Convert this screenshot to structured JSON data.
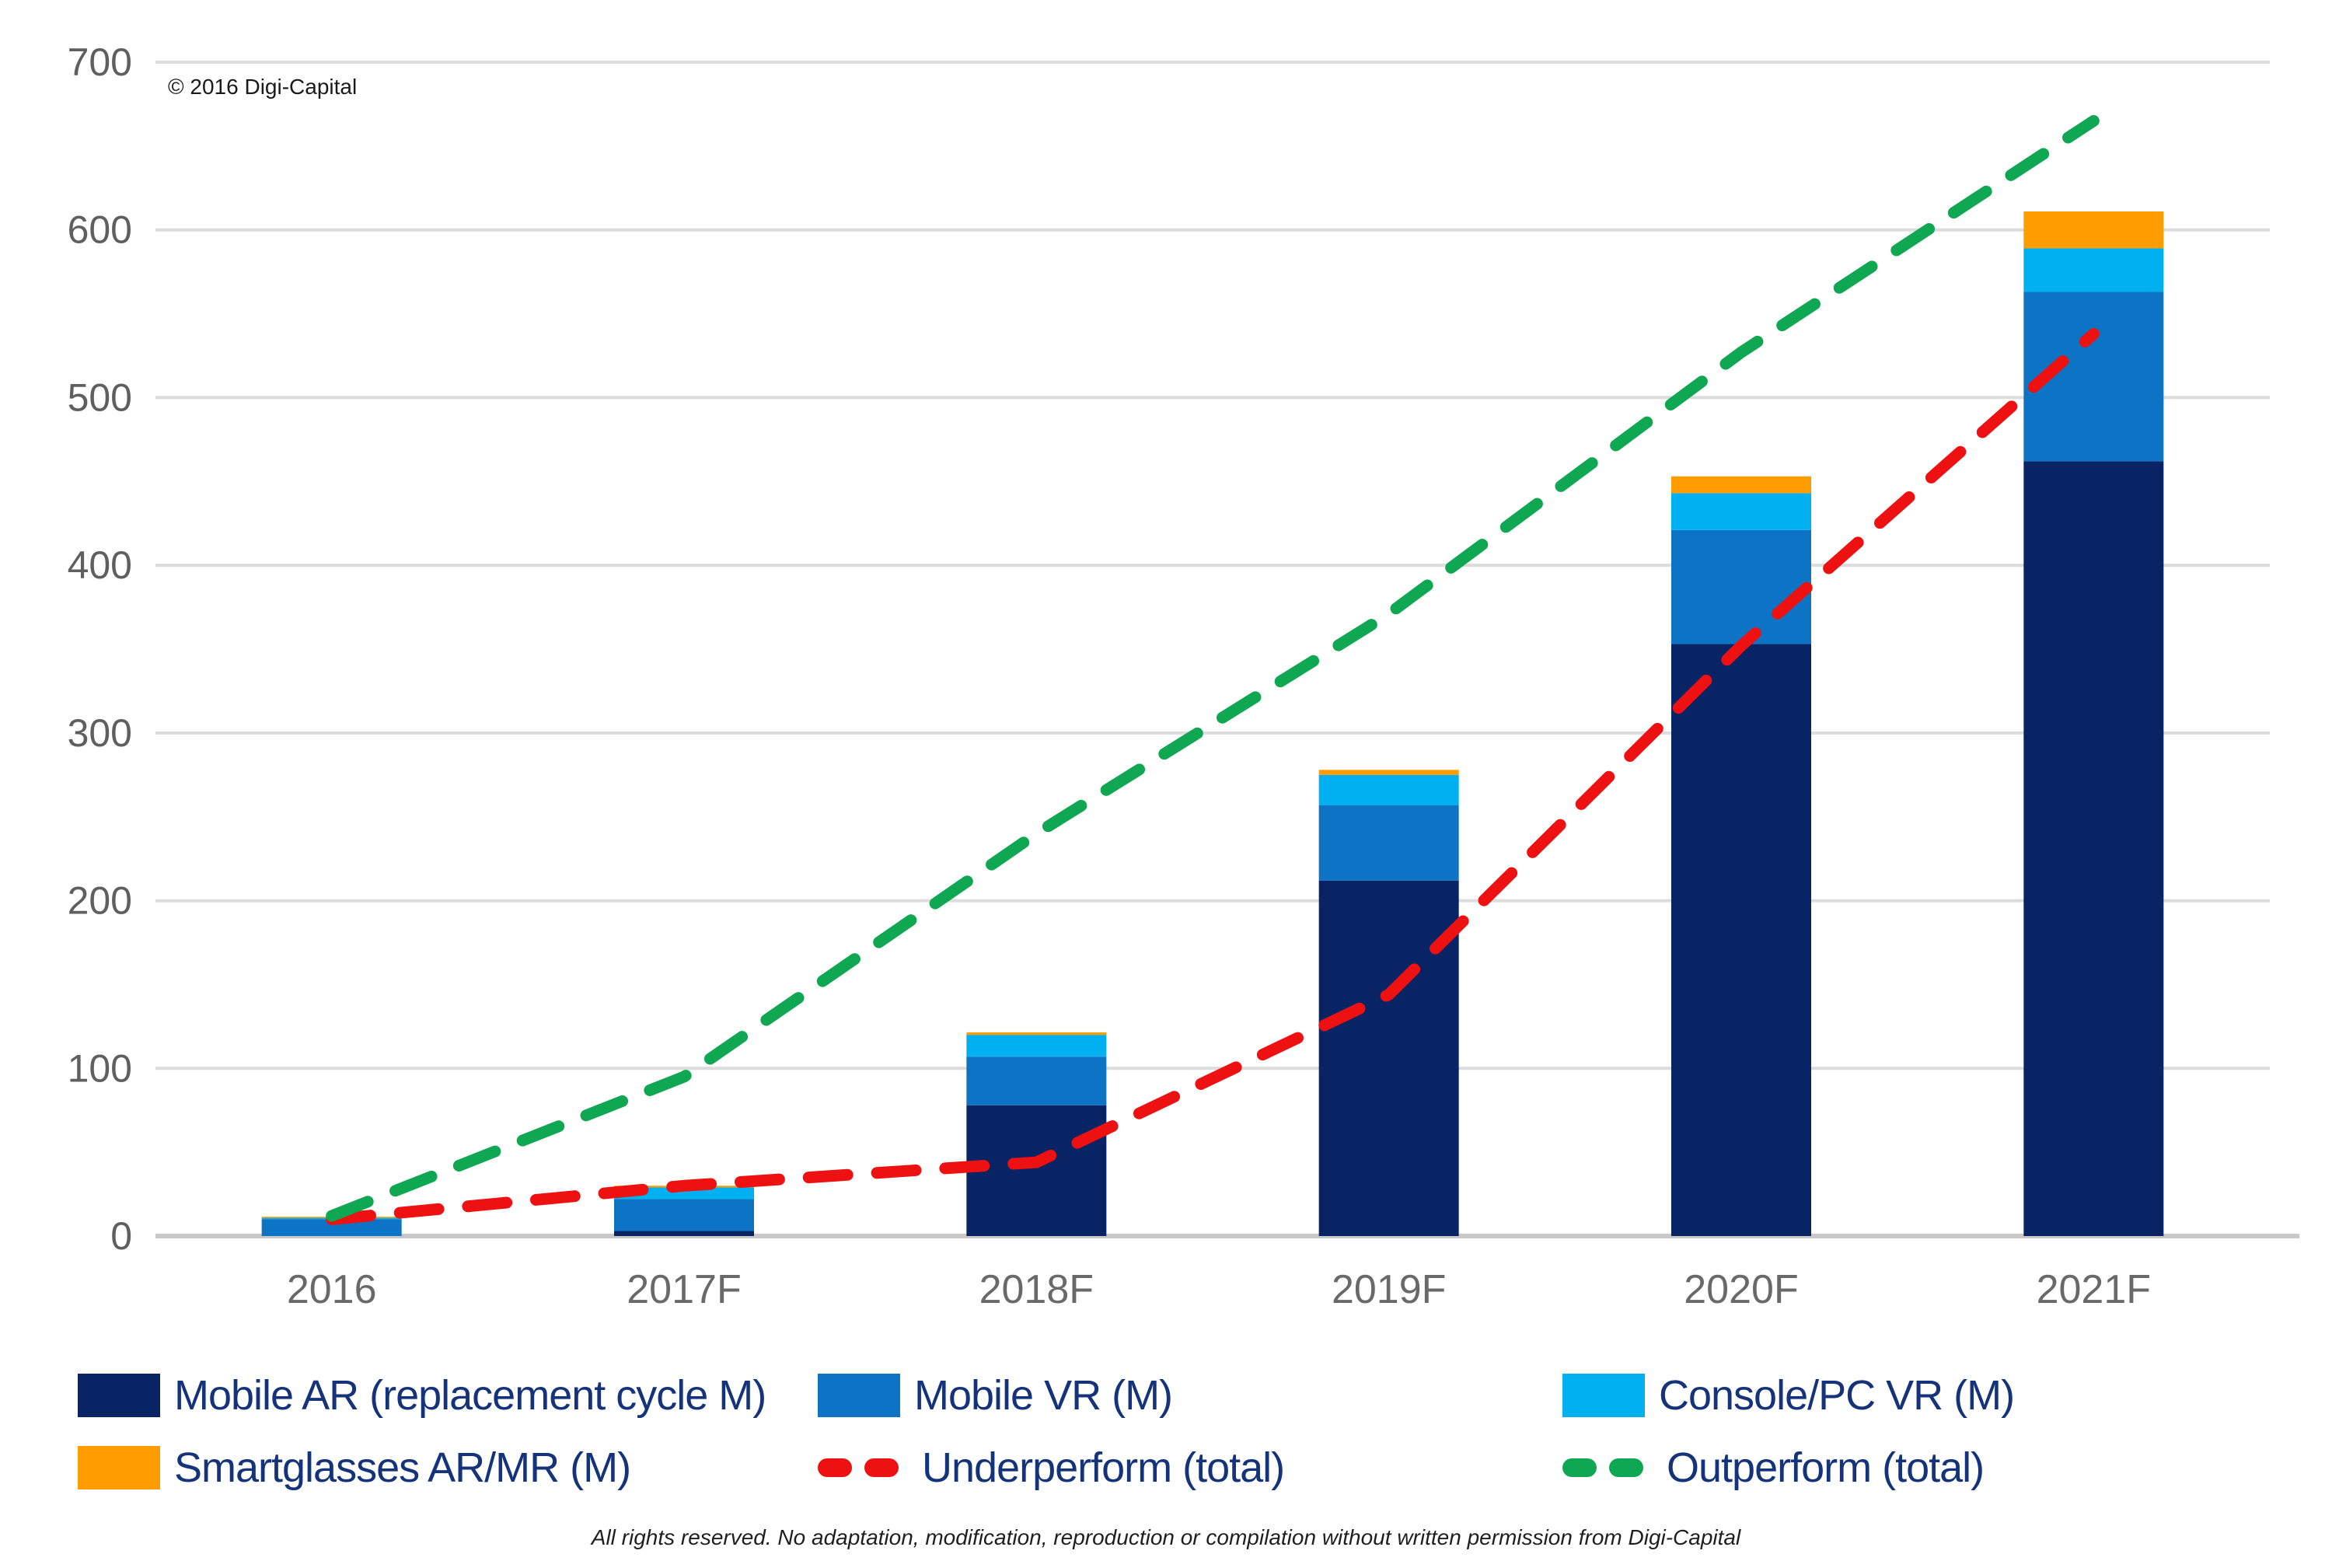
{
  "copyright": "© 2016 Digi-Capital",
  "footer": "All rights reserved. No adaptation, modification, reproduction or compilation without written permission from Digi-Capital",
  "colors": {
    "mobile_ar": "#082464",
    "mobile_vr": "#0d74c5",
    "console_pc_vr": "#00b0f0",
    "smartglasses": "#ff9c00",
    "underperform": "#ee1111",
    "outperform": "#0fa751",
    "gridline": "#dcdcdc",
    "axis_line": "#c9c9c9",
    "tick_label": "#5f5f5f",
    "x_label": "#696969",
    "legend_text": "#14337a"
  },
  "chart_data": {
    "type": "bar",
    "stacked": true,
    "categories": [
      "2016",
      "2017F",
      "2018F",
      "2019F",
      "2020F",
      "2021F"
    ],
    "series": [
      {
        "name": "Mobile AR (replacement cycle M)",
        "type": "bar",
        "color_key": "mobile_ar",
        "values": [
          0,
          3,
          78,
          212,
          353,
          462
        ]
      },
      {
        "name": "Mobile VR (M)",
        "type": "bar",
        "color_key": "mobile_vr",
        "values": [
          10,
          19,
          29,
          45,
          68,
          101
        ]
      },
      {
        "name": "Console/PC VR (M)",
        "type": "bar",
        "color_key": "console_pc_vr",
        "values": [
          1,
          7,
          13,
          18,
          22,
          26
        ]
      },
      {
        "name": "Smartglasses AR/MR (M)",
        "type": "bar",
        "color_key": "smartglasses",
        "values": [
          0.5,
          1,
          1.5,
          3,
          10,
          22
        ]
      },
      {
        "name": "Underperform (total)",
        "type": "dashed-line",
        "color_key": "underperform",
        "values": [
          10,
          30,
          44,
          144,
          352,
          538
        ]
      },
      {
        "name": "Outperform (total)",
        "type": "dashed-line",
        "color_key": "outperform",
        "values": [
          12,
          95,
          240,
          371,
          527,
          665
        ]
      }
    ],
    "bar_totals": [
      11.5,
      30,
      121.5,
      278,
      453,
      611
    ],
    "xlabel": "",
    "ylabel": "",
    "ylim": [
      0,
      700
    ],
    "yticks": [
      0,
      100,
      200,
      300,
      400,
      500,
      600,
      700
    ],
    "grid": "horizontal",
    "legend_position": "bottom"
  }
}
